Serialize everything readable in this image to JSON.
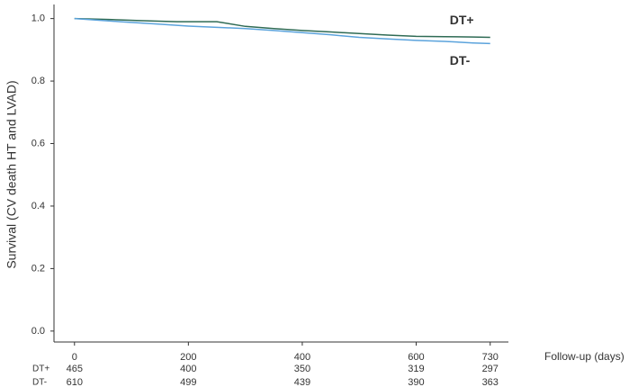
{
  "chart_data": {
    "type": "line",
    "ylabel": "Survival (CV death HT and LVAD)",
    "xlabel": "Follow-up (days)",
    "xlim": [
      -36,
      762
    ],
    "ylim": [
      -0.035,
      1.045
    ],
    "xticks": [
      0,
      200,
      400,
      600,
      730
    ],
    "yticks": [
      {
        "value": 0,
        "label": "0.0"
      },
      0.2,
      0.4,
      0.6,
      0.8,
      {
        "value": 1,
        "label": "1.0"
      }
    ],
    "series": [
      {
        "name": "DT+",
        "color": "#2f6b55",
        "at_risk_color": "#3a8a2a",
        "x": [
          0,
          60,
          120,
          180,
          250,
          300,
          350,
          400,
          450,
          500,
          550,
          600,
          650,
          700,
          730
        ],
        "values": [
          1.0,
          0.997,
          0.993,
          0.99,
          0.99,
          0.975,
          0.968,
          0.962,
          0.957,
          0.952,
          0.947,
          0.943,
          0.942,
          0.941,
          0.94
        ],
        "at_risk": [
          465,
          400,
          350,
          319,
          297
        ]
      },
      {
        "name": "DT-",
        "color": "#5ba3dc",
        "at_risk_color": "#2d5b9a",
        "x": [
          0,
          40,
          80,
          150,
          200,
          250,
          300,
          350,
          400,
          450,
          500,
          550,
          600,
          650,
          700,
          730
        ],
        "values": [
          1.0,
          0.995,
          0.99,
          0.982,
          0.976,
          0.972,
          0.968,
          0.962,
          0.955,
          0.948,
          0.94,
          0.935,
          0.93,
          0.927,
          0.922,
          0.92
        ],
        "at_risk": [
          610,
          499,
          439,
          390,
          363
        ]
      }
    ]
  }
}
